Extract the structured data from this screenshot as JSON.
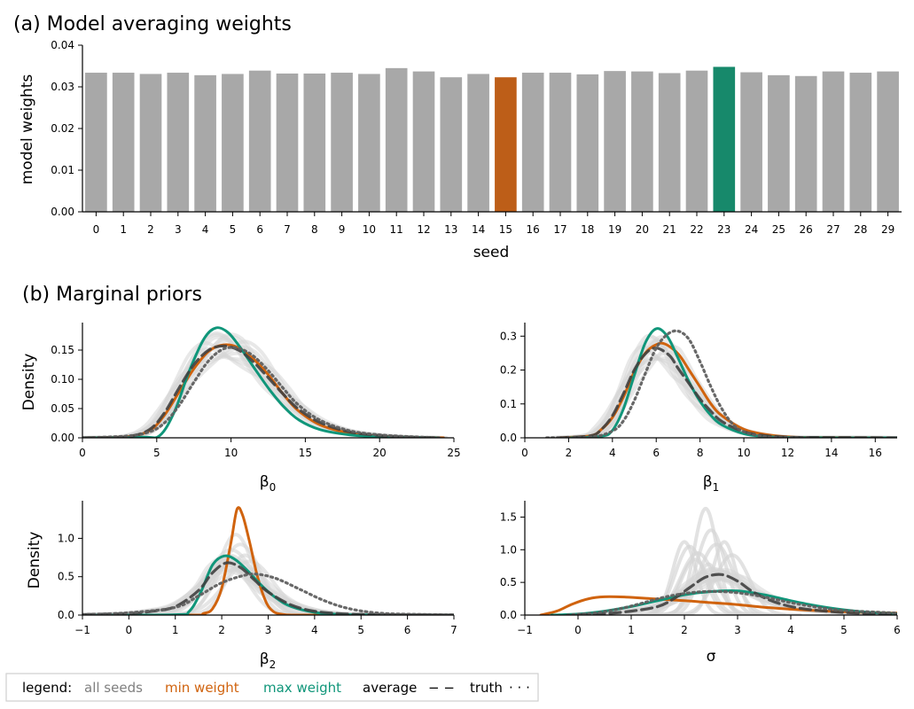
{
  "colors": {
    "bar_default": "#a8a8a8",
    "bar_min": "#bd5e18",
    "bar_max": "#17896b",
    "all_seeds": "#d6d6d6",
    "min_weight": "#d0630e",
    "max_weight": "#10967a",
    "average": "#404040",
    "truth": "#606060"
  },
  "chart_data": [
    {
      "id": "weights",
      "type": "bar",
      "title": "(a) Model averaging weights",
      "xlabel": "seed",
      "ylabel": "model weights",
      "ylim": [
        0,
        0.04
      ],
      "yticks": [
        0.0,
        0.01,
        0.02,
        0.03,
        0.04
      ],
      "ytick_labels": [
        "0.00",
        "0.01",
        "0.02",
        "0.03",
        "0.04"
      ],
      "categories": [
        "0",
        "1",
        "2",
        "3",
        "4",
        "5",
        "6",
        "7",
        "8",
        "9",
        "10",
        "11",
        "12",
        "13",
        "14",
        "15",
        "16",
        "17",
        "18",
        "19",
        "20",
        "21",
        "22",
        "23",
        "24",
        "25",
        "26",
        "27",
        "28",
        "29"
      ],
      "values": [
        0.0334,
        0.0334,
        0.0331,
        0.0334,
        0.0328,
        0.0331,
        0.0339,
        0.0332,
        0.0332,
        0.0334,
        0.0331,
        0.0345,
        0.0337,
        0.0323,
        0.0331,
        0.0323,
        0.0334,
        0.0334,
        0.033,
        0.0338,
        0.0337,
        0.0333,
        0.0339,
        0.0348,
        0.0335,
        0.0328,
        0.0326,
        0.0337,
        0.0334,
        0.0337
      ],
      "min_index": 15,
      "max_index": 23
    },
    {
      "id": "b0",
      "type": "line",
      "section_title": "(b) Marginal priors",
      "xlabel": "β0",
      "xlabel_base": "β",
      "xlabel_sub": "0",
      "ylabel": "Density",
      "xlim": [
        0,
        25
      ],
      "ylim": [
        0,
        0.197
      ],
      "xticks": [
        0,
        5,
        10,
        15,
        20,
        25
      ],
      "xtick_labels": [
        "0",
        "5",
        "10",
        "15",
        "20",
        "25"
      ],
      "yticks": [
        0.0,
        0.05,
        0.1,
        0.15
      ],
      "ytick_labels": [
        "0.00",
        "0.05",
        "0.10",
        "0.15"
      ],
      "series": [
        {
          "name": "min weight",
          "x": [
            0,
            3,
            4.5,
            5.5,
            6.5,
            7.5,
            8.5,
            9.5,
            10.5,
            11.5,
            12.5,
            13.5,
            14.5,
            16,
            18,
            20,
            22,
            24.3
          ],
          "y": [
            0,
            0.002,
            0.012,
            0.038,
            0.078,
            0.118,
            0.148,
            0.159,
            0.154,
            0.135,
            0.108,
            0.075,
            0.047,
            0.022,
            0.008,
            0.003,
            0.001,
            0
          ]
        },
        {
          "name": "max weight",
          "x": [
            0,
            4,
            5.2,
            6.2,
            7.2,
            8.2,
            9.0,
            9.8,
            10.6,
            11.6,
            12.6,
            13.6,
            14.6,
            16,
            18,
            20,
            22,
            24
          ],
          "y": [
            0,
            0.001,
            0.004,
            0.045,
            0.115,
            0.17,
            0.188,
            0.18,
            0.155,
            0.118,
            0.082,
            0.052,
            0.03,
            0.014,
            0.005,
            0.002,
            0.001,
            0
          ]
        },
        {
          "name": "average",
          "x": [
            0,
            3,
            4.5,
            5.5,
            6.5,
            7.5,
            8.5,
            9.5,
            10.5,
            11.5,
            12.5,
            13.5,
            14.5,
            16,
            18,
            20,
            22,
            24
          ],
          "y": [
            0,
            0.002,
            0.014,
            0.042,
            0.085,
            0.125,
            0.15,
            0.157,
            0.15,
            0.13,
            0.103,
            0.075,
            0.05,
            0.026,
            0.01,
            0.004,
            0.001,
            0
          ]
        },
        {
          "name": "truth",
          "x": [
            0,
            3,
            4.5,
            5.5,
            6.5,
            7.5,
            8.5,
            9.5,
            10.5,
            11.5,
            12.5,
            13.5,
            14.5,
            16,
            18,
            20,
            22,
            24
          ],
          "y": [
            0,
            0.003,
            0.01,
            0.025,
            0.055,
            0.095,
            0.132,
            0.152,
            0.153,
            0.14,
            0.115,
            0.085,
            0.057,
            0.03,
            0.012,
            0.005,
            0.002,
            0
          ]
        }
      ]
    },
    {
      "id": "b1",
      "type": "line",
      "xlabel": "β1",
      "xlabel_base": "β",
      "xlabel_sub": "1",
      "ylabel": "",
      "xlim": [
        0,
        17
      ],
      "ylim": [
        0,
        0.34
      ],
      "xticks": [
        0,
        2,
        4,
        6,
        8,
        10,
        12,
        14,
        16
      ],
      "xtick_labels": [
        "0",
        "2",
        "4",
        "6",
        "8",
        "10",
        "12",
        "14",
        "16"
      ],
      "yticks": [
        0.0,
        0.1,
        0.2,
        0.3
      ],
      "ytick_labels": [
        "0.0",
        "0.1",
        "0.2",
        "0.3"
      ],
      "series": [
        {
          "name": "min weight",
          "x": [
            1.5,
            3,
            3.5,
            4,
            4.5,
            5,
            5.5,
            6,
            6.4,
            7,
            7.5,
            8,
            8.5,
            9,
            10,
            11,
            12,
            13,
            17
          ],
          "y": [
            0,
            0.006,
            0.025,
            0.06,
            0.12,
            0.195,
            0.25,
            0.275,
            0.277,
            0.248,
            0.2,
            0.15,
            0.1,
            0.065,
            0.025,
            0.01,
            0.003,
            0.001,
            0
          ]
        },
        {
          "name": "max weight",
          "x": [
            2,
            3.5,
            4,
            4.5,
            5,
            5.5,
            6,
            6.5,
            7,
            7.5,
            8,
            8.5,
            9,
            10,
            11,
            12,
            13,
            15,
            17
          ],
          "y": [
            0,
            0.005,
            0.022,
            0.085,
            0.185,
            0.28,
            0.322,
            0.3,
            0.235,
            0.165,
            0.108,
            0.066,
            0.038,
            0.012,
            0.004,
            0.001,
            0.0005,
            0,
            0
          ]
        },
        {
          "name": "average",
          "x": [
            1.5,
            3,
            3.5,
            4,
            4.5,
            5,
            5.5,
            6,
            6.6,
            7,
            7.5,
            8,
            8.5,
            9,
            10,
            11,
            12,
            13,
            17
          ],
          "y": [
            0,
            0.006,
            0.025,
            0.065,
            0.13,
            0.2,
            0.248,
            0.265,
            0.243,
            0.205,
            0.16,
            0.115,
            0.078,
            0.048,
            0.018,
            0.006,
            0.002,
            0.001,
            0
          ]
        },
        {
          "name": "truth",
          "x": [
            1,
            3,
            4,
            4.5,
            5,
            5.5,
            6,
            6.5,
            7,
            7.5,
            8,
            8.5,
            9,
            9.5,
            10,
            11,
            12,
            13
          ],
          "y": [
            0,
            0.002,
            0.02,
            0.05,
            0.11,
            0.19,
            0.265,
            0.305,
            0.315,
            0.29,
            0.225,
            0.15,
            0.085,
            0.04,
            0.018,
            0.003,
            0.0005,
            0
          ]
        }
      ]
    },
    {
      "id": "b2",
      "type": "line",
      "xlabel": "β2",
      "xlabel_base": "β",
      "xlabel_sub": "2",
      "ylabel": "Density",
      "xlim": [
        -1,
        7
      ],
      "ylim": [
        0,
        1.49
      ],
      "xticks": [
        -1,
        0,
        1,
        2,
        3,
        4,
        5,
        6,
        7
      ],
      "xtick_labels": [
        "−1",
        "0",
        "1",
        "2",
        "3",
        "4",
        "5",
        "6",
        "7"
      ],
      "yticks": [
        0.0,
        0.5,
        1.0
      ],
      "ytick_labels": [
        "0.0",
        "0.5",
        "1.0"
      ],
      "series": [
        {
          "name": "min weight",
          "x": [
            -1,
            1.4,
            1.6,
            1.8,
            2.0,
            2.2,
            2.33,
            2.45,
            2.6,
            2.75,
            2.9,
            3.05,
            3.3,
            4,
            7
          ],
          "y": [
            0,
            0,
            0.02,
            0.08,
            0.35,
            0.95,
            1.38,
            1.3,
            0.95,
            0.55,
            0.25,
            0.08,
            0.01,
            0,
            0
          ]
        },
        {
          "name": "max weight",
          "x": [
            -1,
            1.0,
            1.3,
            1.55,
            1.8,
            2.05,
            2.3,
            2.6,
            2.9,
            3.2,
            3.5,
            4.0,
            4.5,
            5,
            6,
            7
          ],
          "y": [
            0,
            0.005,
            0.05,
            0.3,
            0.65,
            0.77,
            0.72,
            0.55,
            0.36,
            0.21,
            0.11,
            0.035,
            0.01,
            0.003,
            0,
            0
          ]
        },
        {
          "name": "average",
          "x": [
            -1,
            0,
            0.5,
            1,
            1.5,
            1.8,
            2.1,
            2.4,
            2.7,
            3.0,
            3.5,
            4.0,
            4.5,
            5,
            6,
            7
          ],
          "y": [
            0.005,
            0.02,
            0.05,
            0.11,
            0.32,
            0.55,
            0.68,
            0.62,
            0.46,
            0.3,
            0.13,
            0.05,
            0.02,
            0.008,
            0.002,
            0
          ]
        },
        {
          "name": "truth",
          "x": [
            -1,
            0,
            1,
            1.5,
            2,
            2.5,
            2.8,
            3.2,
            3.7,
            4.2,
            4.7,
            5.3,
            6,
            7
          ],
          "y": [
            0.005,
            0.03,
            0.1,
            0.25,
            0.42,
            0.52,
            0.53,
            0.47,
            0.33,
            0.19,
            0.09,
            0.03,
            0.01,
            0.002
          ]
        }
      ]
    },
    {
      "id": "sigma",
      "type": "line",
      "xlabel": "σ",
      "ylabel": "",
      "xlim": [
        -1,
        6
      ],
      "ylim": [
        0,
        1.75
      ],
      "xticks": [
        -1,
        0,
        1,
        2,
        3,
        4,
        5,
        6
      ],
      "xtick_labels": [
        "−1",
        "0",
        "1",
        "2",
        "3",
        "4",
        "5",
        "6"
      ],
      "yticks": [
        0.0,
        0.5,
        1.0,
        1.5
      ],
      "ytick_labels": [
        "0.0",
        "0.5",
        "1.0",
        "1.5"
      ],
      "series": [
        {
          "name": "min weight",
          "x": [
            -0.7,
            -0.4,
            -0.1,
            0.2,
            0.5,
            0.9,
            1.4,
            2,
            2.5,
            3,
            3.5,
            4,
            5,
            6
          ],
          "y": [
            0,
            0.06,
            0.17,
            0.25,
            0.28,
            0.275,
            0.25,
            0.22,
            0.19,
            0.16,
            0.12,
            0.09,
            0.05,
            0.03
          ]
        },
        {
          "name": "max weight",
          "x": [
            -0.5,
            0,
            0.5,
            1,
            1.5,
            2,
            2.5,
            3,
            3.5,
            4,
            4.5,
            5,
            5.5,
            6
          ],
          "y": [
            0,
            0.015,
            0.06,
            0.13,
            0.22,
            0.31,
            0.36,
            0.37,
            0.31,
            0.22,
            0.14,
            0.08,
            0.04,
            0.02
          ]
        },
        {
          "name": "average",
          "x": [
            0,
            0.5,
            1,
            1.5,
            1.8,
            2.1,
            2.4,
            2.7,
            3.0,
            3.3,
            3.7,
            4.2,
            5,
            6
          ],
          "y": [
            0.005,
            0.02,
            0.06,
            0.13,
            0.25,
            0.42,
            0.58,
            0.62,
            0.52,
            0.35,
            0.2,
            0.1,
            0.04,
            0.015
          ]
        },
        {
          "name": "truth",
          "x": [
            -0.2,
            0.3,
            0.8,
            1.2,
            1.6,
            2,
            2.4,
            2.8,
            3.2,
            3.6,
            4,
            4.5,
            5,
            6
          ],
          "y": [
            0,
            0.03,
            0.1,
            0.18,
            0.27,
            0.33,
            0.36,
            0.355,
            0.32,
            0.26,
            0.19,
            0.12,
            0.07,
            0.03
          ]
        }
      ]
    }
  ],
  "legend": {
    "label": "legend:",
    "items": [
      {
        "name": "all seeds",
        "marker": ""
      },
      {
        "name": "min weight",
        "marker": ""
      },
      {
        "name": "max weight",
        "marker": ""
      },
      {
        "name": "average",
        "marker": "− −"
      },
      {
        "name": "truth",
        "marker": "· · ·"
      }
    ]
  }
}
